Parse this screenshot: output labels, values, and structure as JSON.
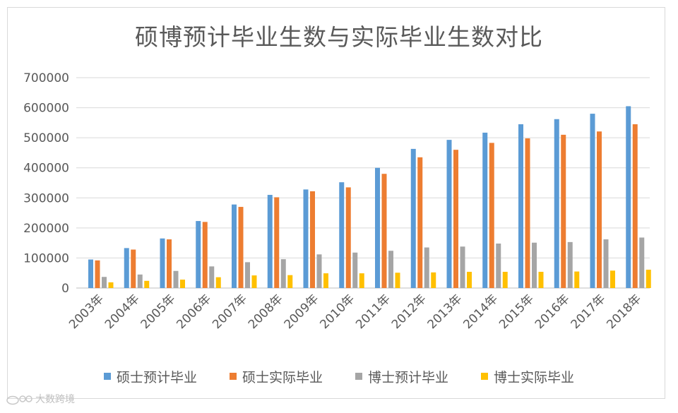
{
  "chart_data": {
    "type": "bar",
    "title": "硕博预计毕业生数与实际毕业生数对比",
    "categories": [
      "2003年",
      "2004年",
      "2005年",
      "2006年",
      "2007年",
      "2008年",
      "2009年",
      "2010年",
      "2011年",
      "2012年",
      "2013年",
      "2014年",
      "2015年",
      "2016年",
      "2017年",
      "2018年"
    ],
    "series": [
      {
        "name": "硕士预计毕业",
        "color": "#5b9bd5",
        "values": [
          95000,
          133000,
          165000,
          223000,
          278000,
          310000,
          328000,
          352000,
          400000,
          463000,
          493000,
          517000,
          545000,
          562000,
          580000,
          605000
        ]
      },
      {
        "name": "硕士实际毕业",
        "color": "#ed7d31",
        "values": [
          92000,
          128000,
          162000,
          220000,
          270000,
          302000,
          322000,
          335000,
          380000,
          435000,
          460000,
          483000,
          498000,
          510000,
          521000,
          545000
        ]
      },
      {
        "name": "博士预计毕业",
        "color": "#a5a5a5",
        "values": [
          37000,
          45000,
          57000,
          72000,
          86000,
          96000,
          112000,
          118000,
          124000,
          135000,
          138000,
          148000,
          151000,
          153000,
          162000,
          168000
        ]
      },
      {
        "name": "博士实际毕业",
        "color": "#ffc000",
        "values": [
          19000,
          24000,
          28000,
          36000,
          42000,
          43000,
          49000,
          49000,
          51000,
          52000,
          54000,
          54000,
          54000,
          55000,
          58000,
          61000
        ]
      }
    ],
    "yticks": [
      "700000",
      "600000",
      "500000",
      "400000",
      "300000",
      "200000",
      "100000",
      "0"
    ],
    "ylim": [
      0,
      700000
    ],
    "grid": true,
    "legend_position": "bottom"
  },
  "watermark": {
    "text": "大数跨境",
    "icon": "weibo-logo-icon"
  }
}
